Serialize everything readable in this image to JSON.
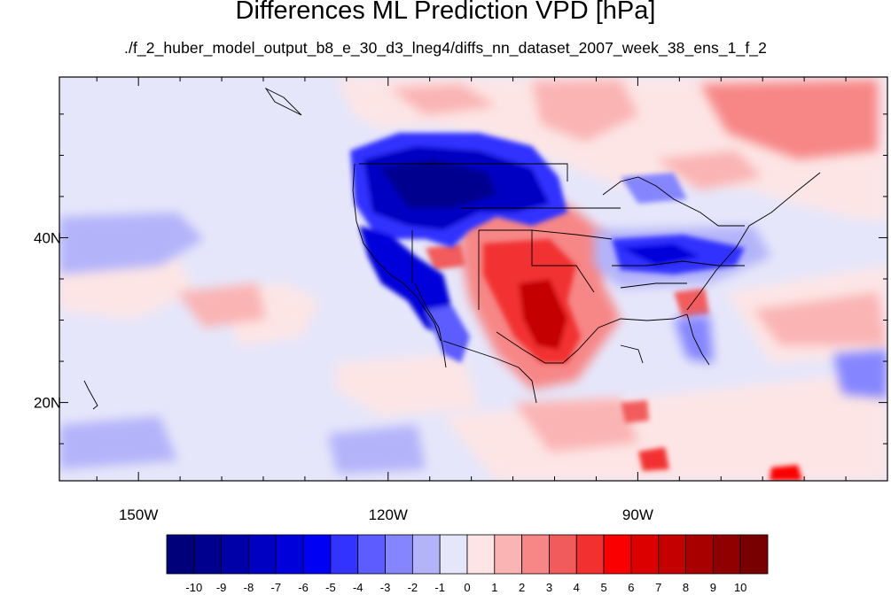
{
  "title": "Differences ML Prediction VPD [hPa]",
  "subtitle": "./f_2_huber_model_output_b8_e_30_d3_lneg4/diffs_nn_dataset_2007_week_38_ens_1_f_2",
  "lon_range": [
    -159.5,
    -60
  ],
  "lat_range": [
    10.5,
    59.5
  ],
  "lon_ticks": [
    {
      "value": -150,
      "label": "150W"
    },
    {
      "value": -120,
      "label": "120W"
    },
    {
      "value": -90,
      "label": "90W"
    }
  ],
  "lat_ticks": [
    {
      "value": 40,
      "label": "40N"
    },
    {
      "value": 20,
      "label": "20N"
    }
  ],
  "colorbar": {
    "colors": [
      "#00007a",
      "#00008f",
      "#0000a8",
      "#0000c2",
      "#0000db",
      "#0000f5",
      "#3333ff",
      "#5c5cff",
      "#8585ff",
      "#b3b3fa",
      "#e6e6fa",
      "#fde5e5",
      "#fab4b4",
      "#f78686",
      "#f25b5b",
      "#f23030",
      "#fa0000",
      "#dc0000",
      "#c40000",
      "#a80000",
      "#900000",
      "#780000"
    ],
    "labels": [
      "-10",
      "-9",
      "-8",
      "-7",
      "-6",
      "-5",
      "-4",
      "-3",
      "-2",
      "-1",
      "0",
      "1",
      "2",
      "3",
      "4",
      "5",
      "6",
      "7",
      "8",
      "9",
      "10"
    ]
  }
}
